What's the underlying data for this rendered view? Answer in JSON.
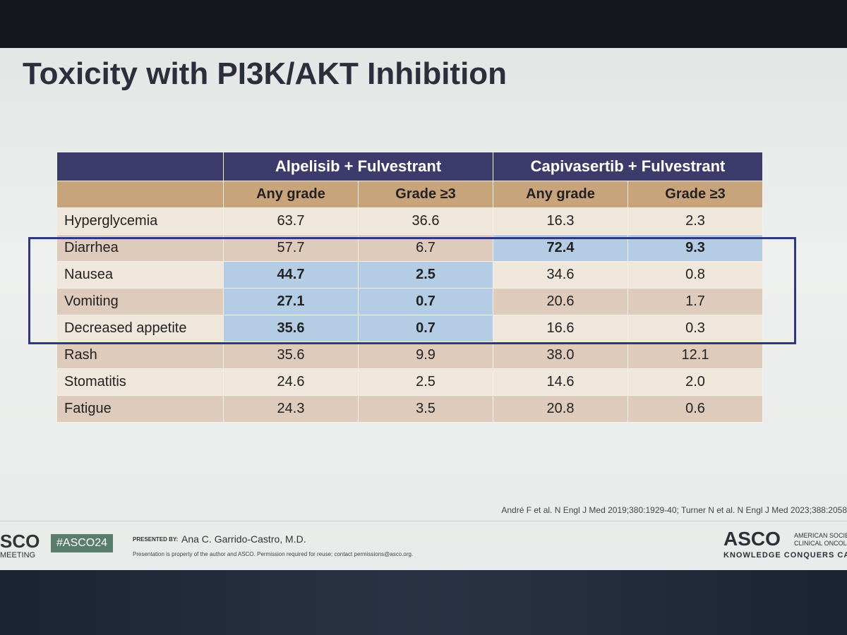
{
  "title": "Toxicity with PI3K/AKT Inhibition",
  "table": {
    "groups": [
      "Alpelisib + Fulvestrant",
      "Capivasertib + Fulvestrant"
    ],
    "subheaders": [
      "Any grade",
      "Grade ≥3",
      "Any grade",
      "Grade ≥3"
    ],
    "rows": [
      {
        "label": "Hyperglycemia",
        "cells": [
          "63.7",
          "36.6",
          "16.3",
          "2.3"
        ],
        "highlight": [
          false,
          false,
          false,
          false
        ]
      },
      {
        "label": "Diarrhea",
        "cells": [
          "57.7",
          "6.7",
          "72.4",
          "9.3"
        ],
        "highlight": [
          false,
          false,
          true,
          true
        ]
      },
      {
        "label": "Nausea",
        "cells": [
          "44.7",
          "2.5",
          "34.6",
          "0.8"
        ],
        "highlight": [
          true,
          true,
          false,
          false
        ]
      },
      {
        "label": "Vomiting",
        "cells": [
          "27.1",
          "0.7",
          "20.6",
          "1.7"
        ],
        "highlight": [
          true,
          true,
          false,
          false
        ]
      },
      {
        "label": "Decreased appetite",
        "cells": [
          "35.6",
          "0.7",
          "16.6",
          "0.3"
        ],
        "highlight": [
          true,
          true,
          false,
          false
        ]
      },
      {
        "label": "Rash",
        "cells": [
          "35.6",
          "9.9",
          "38.0",
          "12.1"
        ],
        "highlight": [
          false,
          false,
          false,
          false
        ]
      },
      {
        "label": "Stomatitis",
        "cells": [
          "24.6",
          "2.5",
          "14.6",
          "2.0"
        ],
        "highlight": [
          false,
          false,
          false,
          false
        ]
      },
      {
        "label": "Fatigue",
        "cells": [
          "24.3",
          "3.5",
          "20.8",
          "0.6"
        ],
        "highlight": [
          false,
          false,
          false,
          false
        ]
      }
    ]
  },
  "footer": {
    "reference": "André F et al. N Engl J Med 2019;380:1929-40; Turner N et al. N Engl J Med 2023;388:2058",
    "left_logo": "SCO",
    "left_logo_sub": "MEETING",
    "hashtag": "#ASCO24",
    "presented_by_label": "PRESENTED BY:",
    "presenter": "Ana C. Garrido-Castro, M.D.",
    "notice": "Presentation is property of the author and ASCO. Permission required for reuse; contact permissions@asco.org.",
    "right_logo": "ASCO",
    "right_logo_lines": [
      "AMERICAN SOCIE",
      "CLINICAL ONCOL"
    ],
    "tagline": "KNOWLEDGE CONQUERS CAN"
  }
}
